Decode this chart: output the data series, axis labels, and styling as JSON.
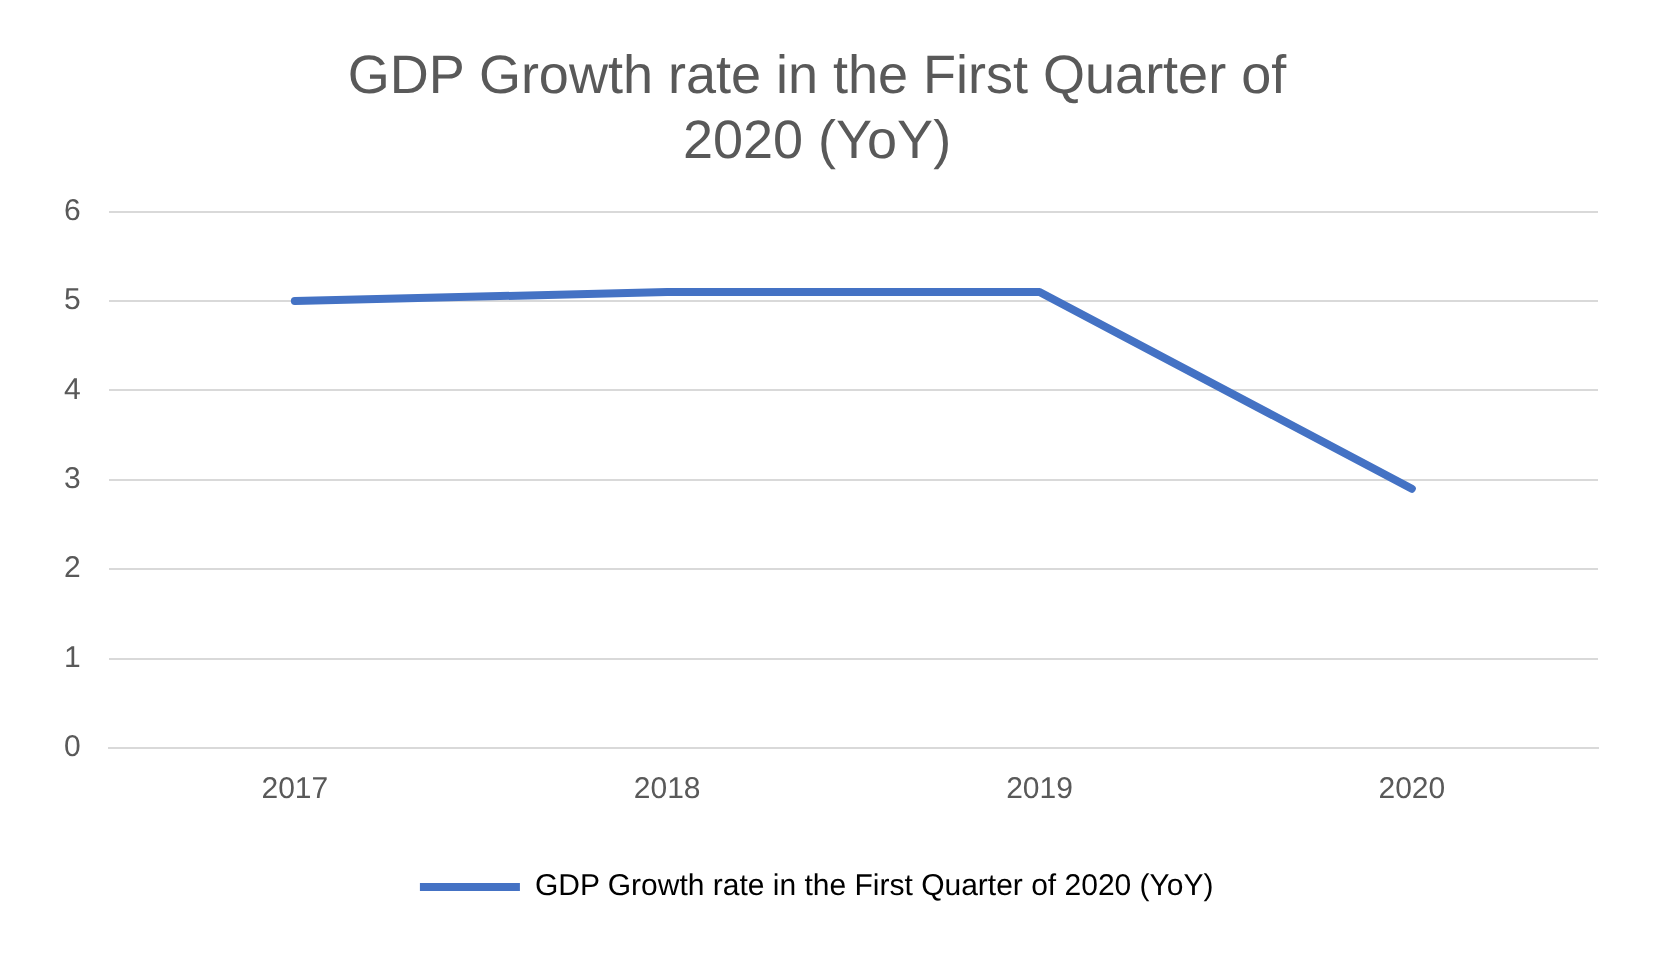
{
  "chart_data": {
    "type": "line",
    "title": "GDP Growth rate in the First Quarter of 2020 (YoY)",
    "categories": [
      "2017",
      "2018",
      "2019",
      "2020"
    ],
    "series": [
      {
        "name": "GDP Growth rate in the First Quarter of 2020 (YoY)",
        "color": "#4472c4",
        "values": [
          5.0,
          5.1,
          5.1,
          2.9
        ]
      }
    ],
    "ylim": [
      0,
      6
    ],
    "yticks": [
      0,
      1,
      2,
      3,
      4,
      5,
      6
    ],
    "grid": "y",
    "legend": "bottom",
    "marker": "none",
    "line_style": "solid"
  }
}
